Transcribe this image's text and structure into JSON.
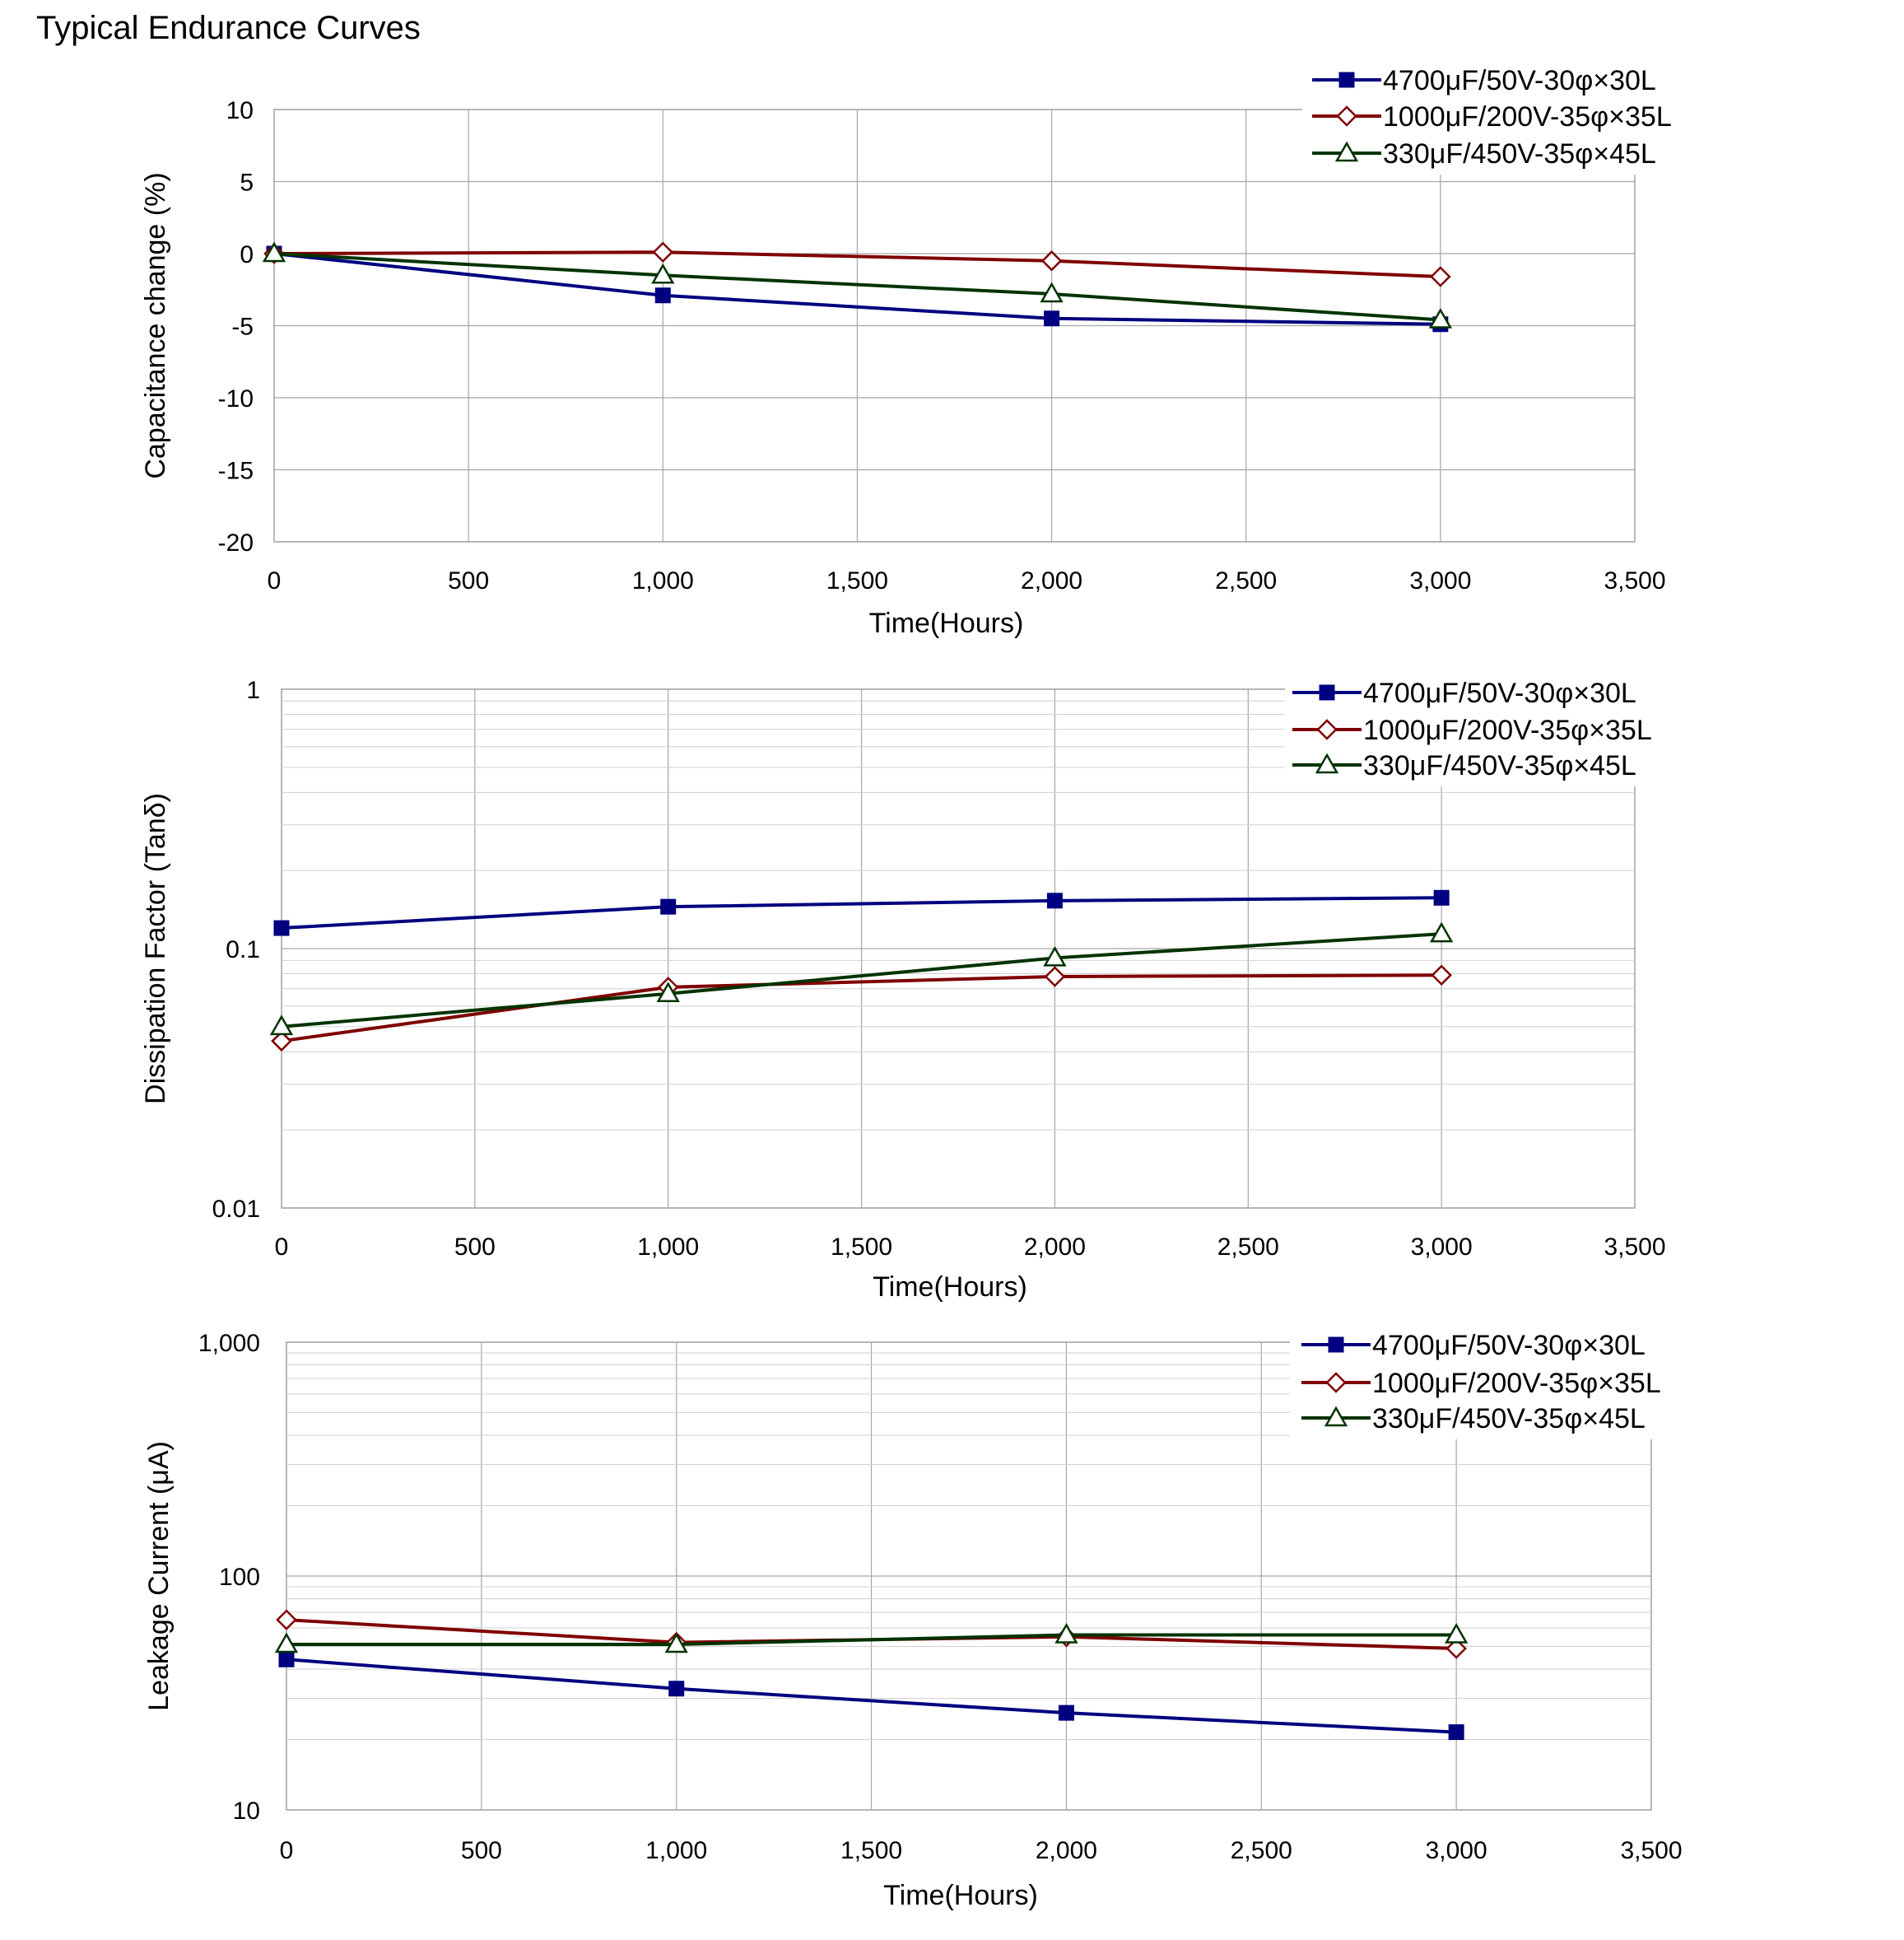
{
  "page": {
    "title": "Typical Endurance Curves"
  },
  "colors": {
    "s1": "#000080",
    "s2": "#800000",
    "s3": "#003300",
    "grid": "#a6a6a6",
    "minor": "#d0d0d0"
  },
  "chart_data": [
    {
      "type": "line",
      "xlabel": "Time(Hours)",
      "ylabel": "Capacitance change (%)",
      "xlim": [
        0,
        3500
      ],
      "ylim": [
        -20,
        10
      ],
      "yscale": "linear",
      "grid": true,
      "legend": "top-right",
      "x_ticks": [
        "0",
        "500",
        "1,000",
        "1,500",
        "2,000",
        "2,500",
        "3,000",
        "3,500"
      ],
      "y_ticks": [
        "10",
        "5",
        "0",
        "-5",
        "-10",
        "-15",
        "-20"
      ],
      "series": [
        {
          "name": "4700μF/50V-30φ×30L",
          "marker": "square-filled",
          "x": [
            0,
            1000,
            2000,
            3000
          ],
          "y": [
            0,
            -2.9,
            -4.5,
            -4.9
          ]
        },
        {
          "name": "1000μF/200V-35φ×35L",
          "marker": "diamond-open",
          "x": [
            0,
            1000,
            2000,
            3000
          ],
          "y": [
            0,
            0.1,
            -0.5,
            -1.6
          ]
        },
        {
          "name": "330μF/450V-35φ×45L",
          "marker": "triangle-open",
          "x": [
            0,
            1000,
            2000,
            3000
          ],
          "y": [
            0,
            -1.5,
            -2.8,
            -4.6
          ]
        }
      ]
    },
    {
      "type": "line",
      "xlabel": "Time(Hours)",
      "ylabel": "Dissipation Factor (Tanδ)",
      "xlim": [
        0,
        3500
      ],
      "ylim": [
        0.01,
        1
      ],
      "yscale": "log",
      "grid": true,
      "legend": "top-right",
      "x_ticks": [
        "0",
        "500",
        "1,000",
        "1,500",
        "2,000",
        "2,500",
        "3,000",
        "3,500"
      ],
      "y_ticks": [
        "1",
        "0.1",
        "0.01"
      ],
      "series": [
        {
          "name": "4700μF/50V-30φ×30L",
          "marker": "square-filled",
          "x": [
            0,
            1000,
            2000,
            3000
          ],
          "y": [
            0.12,
            0.145,
            0.153,
            0.157
          ]
        },
        {
          "name": "1000μF/200V-35φ×35L",
          "marker": "diamond-open",
          "x": [
            0,
            1000,
            2000,
            3000
          ],
          "y": [
            0.044,
            0.071,
            0.078,
            0.079
          ]
        },
        {
          "name": "330μF/450V-35φ×45L",
          "marker": "triangle-open",
          "x": [
            0,
            1000,
            2000,
            3000
          ],
          "y": [
            0.05,
            0.067,
            0.092,
            0.114
          ]
        }
      ]
    },
    {
      "type": "line",
      "xlabel": "Time(Hours)",
      "ylabel": "Leakage Current (μA)",
      "xlim": [
        0,
        3500
      ],
      "ylim": [
        10,
        1000
      ],
      "yscale": "log",
      "grid": true,
      "legend": "top-right",
      "x_ticks": [
        "0",
        "500",
        "1,000",
        "1,500",
        "2,000",
        "2,500",
        "3,000",
        "3,500"
      ],
      "y_ticks": [
        "1,000",
        "100",
        "10"
      ],
      "series": [
        {
          "name": "4700μF/50V-30φ×30L",
          "marker": "square-filled",
          "x": [
            0,
            1000,
            2000,
            3000
          ],
          "y": [
            44,
            33,
            26,
            21.5
          ]
        },
        {
          "name": "1000μF/200V-35φ×35L",
          "marker": "diamond-open",
          "x": [
            0,
            1000,
            2000,
            3000
          ],
          "y": [
            65,
            52,
            55,
            49
          ]
        },
        {
          "name": "330μF/450V-35φ×45L",
          "marker": "triangle-open",
          "x": [
            0,
            1000,
            2000,
            3000
          ],
          "y": [
            51,
            51,
            56,
            56
          ]
        }
      ]
    }
  ]
}
